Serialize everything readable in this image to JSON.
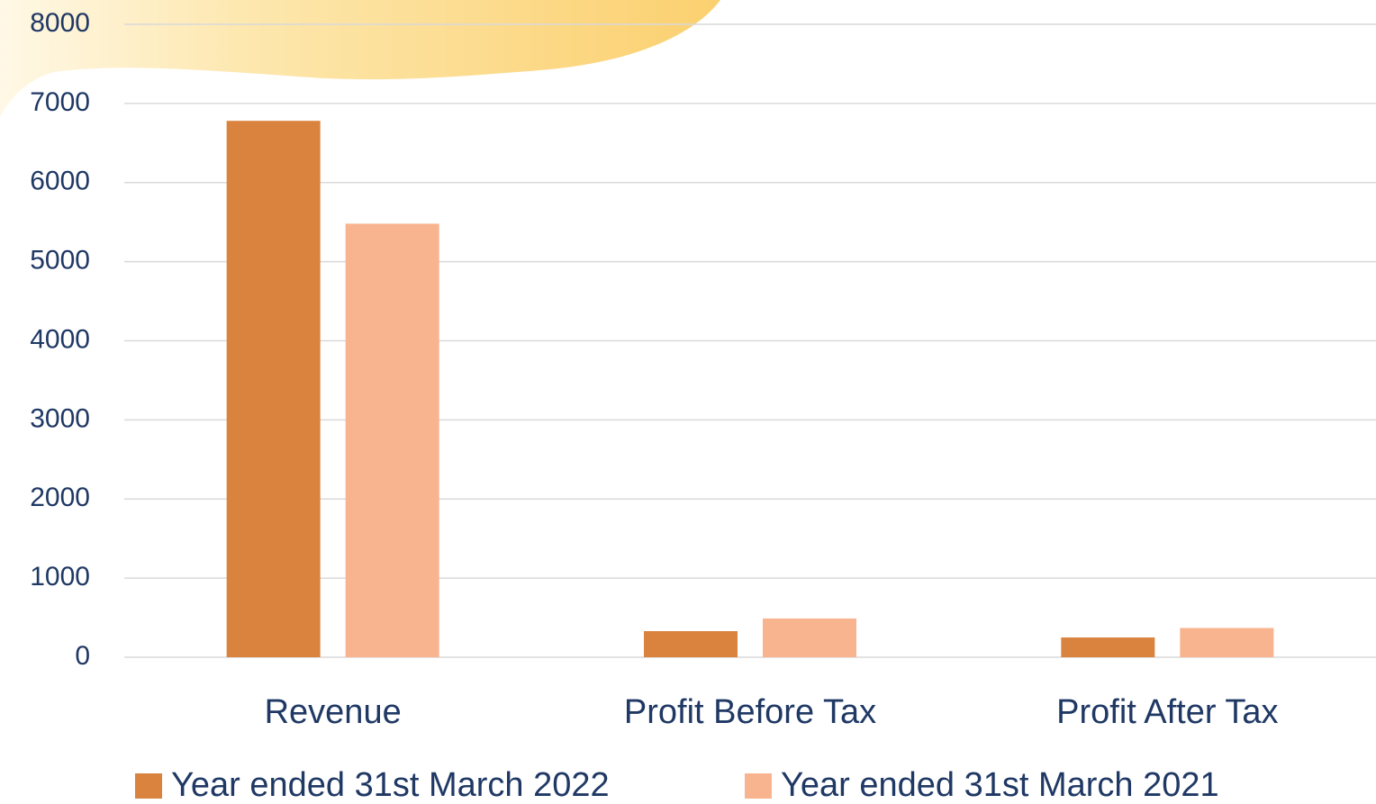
{
  "chart_data": {
    "type": "bar",
    "categories": [
      "Revenue",
      "Profit Before Tax",
      "Profit After Tax"
    ],
    "series": [
      {
        "name": "Year ended 31st March 2022",
        "color": "#d9833f",
        "values": [
          6780,
          330,
          250
        ]
      },
      {
        "name": "Year ended 31st March 2021",
        "color": "#f8b48f",
        "values": [
          5480,
          490,
          370
        ]
      }
    ],
    "ylim": [
      0,
      8000
    ],
    "yticks": [
      0,
      1000,
      2000,
      3000,
      4000,
      5000,
      6000,
      7000,
      8000
    ],
    "grid": true,
    "legend": "bottom"
  }
}
